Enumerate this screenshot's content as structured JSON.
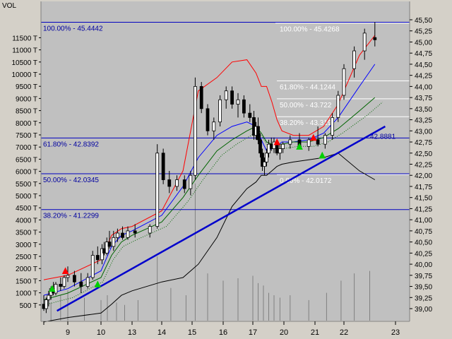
{
  "panel": {
    "volume_label": "VOL"
  },
  "chart_data": {
    "type": "candlestick",
    "x_ticks": [
      "9",
      "10",
      "13",
      "14",
      "15",
      "16",
      "17",
      "20",
      "21",
      "22",
      "23"
    ],
    "left_axis_ticks": [
      "500 T",
      "1000 T",
      "1500 T",
      "2000 T",
      "2500 T",
      "3000 T",
      "3500 T",
      "4000 T",
      "4500 T",
      "5000 T",
      "5500 T",
      "6000 T",
      "6500 T",
      "7000 T",
      "7500 T",
      "8000 T",
      "8500 T",
      "9000 T",
      "9500 T",
      "10000 T",
      "10500 T",
      "11000 T",
      "11500 T"
    ],
    "right_axis_ticks": [
      "39,00",
      "39,25",
      "39,50",
      "39,75",
      "40,00",
      "40,25",
      "40,50",
      "40,75",
      "41,00",
      "41,25",
      "41,50",
      "41,75",
      "42,00",
      "42,25",
      "42,50",
      "42,75",
      "43,00",
      "43,25",
      "43,50",
      "43,75",
      "44,00",
      "44,25",
      "44,50",
      "44,75",
      "45,00",
      "45,25",
      "45,50"
    ],
    "price_range": [
      38.9,
      45.55
    ],
    "fibonacci_long": [
      {
        "label": "100.00% - 45.4442",
        "price": 45.4442
      },
      {
        "label": "61.80% - 42.8392",
        "price": 42.8392
      },
      {
        "label": "50.00% - 42.0345",
        "price": 42.0345
      },
      {
        "label": "38.20% - 41.2299",
        "price": 41.2299
      }
    ],
    "fibonacci_short": [
      {
        "label": "100.00% - 45.4268",
        "price": 45.4268
      },
      {
        "label": "61.80% - 44.1244",
        "price": 44.1244
      },
      {
        "label": "50.00% - 43.722",
        "price": 43.722
      },
      {
        "label": "38.20% - 43.3197",
        "price": 43.3197
      },
      {
        "label": "0.00% - 42.0172",
        "price": 42.0172
      }
    ],
    "trendline_value_label": "42.8881",
    "trendline_value": 42.8881,
    "trendline": {
      "from": {
        "day": 8.55,
        "price": 38.95
      },
      "to": {
        "day": 22.8,
        "price": 43.1
      }
    },
    "candles": [
      {
        "d": 8.0,
        "o": 39.1,
        "h": 39.3,
        "l": 38.95,
        "c": 39.0
      },
      {
        "d": 8.1,
        "o": 39.0,
        "h": 39.25,
        "l": 38.9,
        "c": 39.2
      },
      {
        "d": 8.2,
        "o": 39.2,
        "h": 39.4,
        "l": 39.05,
        "c": 39.3
      },
      {
        "d": 8.3,
        "o": 39.3,
        "h": 39.5,
        "l": 39.2,
        "c": 39.45
      },
      {
        "d": 8.4,
        "o": 39.45,
        "h": 39.6,
        "l": 39.3,
        "c": 39.35
      },
      {
        "d": 8.5,
        "o": 39.35,
        "h": 39.6,
        "l": 39.3,
        "c": 39.55
      },
      {
        "d": 8.7,
        "o": 39.55,
        "h": 39.7,
        "l": 39.4,
        "c": 39.5
      },
      {
        "d": 8.85,
        "o": 39.5,
        "h": 39.75,
        "l": 39.45,
        "c": 39.7
      },
      {
        "d": 9.0,
        "o": 39.7,
        "h": 39.95,
        "l": 39.6,
        "c": 39.75
      },
      {
        "d": 9.2,
        "o": 39.75,
        "h": 39.85,
        "l": 39.5,
        "c": 39.6
      },
      {
        "d": 9.4,
        "o": 39.6,
        "h": 39.8,
        "l": 39.35,
        "c": 39.5
      },
      {
        "d": 9.6,
        "o": 39.5,
        "h": 39.8,
        "l": 39.45,
        "c": 39.7
      },
      {
        "d": 9.75,
        "o": 39.7,
        "h": 40.3,
        "l": 39.65,
        "c": 40.2
      },
      {
        "d": 9.9,
        "o": 40.2,
        "h": 40.4,
        "l": 40.0,
        "c": 40.1
      },
      {
        "d": 10.1,
        "o": 40.1,
        "h": 40.45,
        "l": 40.0,
        "c": 40.35
      },
      {
        "d": 10.3,
        "o": 40.35,
        "h": 40.5,
        "l": 40.2,
        "c": 40.25
      },
      {
        "d": 10.55,
        "o": 40.25,
        "h": 40.6,
        "l": 40.2,
        "c": 40.5
      },
      {
        "d": 10.8,
        "o": 40.5,
        "h": 40.75,
        "l": 40.35,
        "c": 40.4
      },
      {
        "d": 11.2,
        "o": 40.4,
        "h": 40.75,
        "l": 40.3,
        "c": 40.6
      },
      {
        "d": 11.6,
        "o": 40.6,
        "h": 40.8,
        "l": 40.5,
        "c": 40.7
      },
      {
        "d": 12.1,
        "o": 40.7,
        "h": 40.85,
        "l": 40.55,
        "c": 40.6
      },
      {
        "d": 12.6,
        "o": 40.6,
        "h": 40.85,
        "l": 40.55,
        "c": 40.75
      },
      {
        "d": 13.1,
        "o": 40.75,
        "h": 40.9,
        "l": 40.6,
        "c": 40.7
      },
      {
        "d": 13.6,
        "o": 40.7,
        "h": 40.9,
        "l": 40.6,
        "c": 40.85
      },
      {
        "d": 13.85,
        "o": 40.85,
        "h": 42.7,
        "l": 40.8,
        "c": 42.5
      },
      {
        "d": 14.05,
        "o": 42.5,
        "h": 42.6,
        "l": 41.8,
        "c": 41.9
      },
      {
        "d": 14.25,
        "o": 41.9,
        "h": 42.1,
        "l": 41.6,
        "c": 41.75
      },
      {
        "d": 14.5,
        "o": 41.75,
        "h": 42.0,
        "l": 41.65,
        "c": 41.9
      },
      {
        "d": 14.75,
        "o": 41.9,
        "h": 42.0,
        "l": 41.6,
        "c": 41.7
      },
      {
        "d": 14.95,
        "o": 41.7,
        "h": 42.1,
        "l": 41.55,
        "c": 42.0
      },
      {
        "d": 15.1,
        "o": 42.0,
        "h": 44.2,
        "l": 41.9,
        "c": 44.0
      },
      {
        "d": 15.3,
        "o": 44.0,
        "h": 44.1,
        "l": 43.4,
        "c": 43.5
      },
      {
        "d": 15.5,
        "o": 43.5,
        "h": 43.6,
        "l": 42.9,
        "c": 43.0
      },
      {
        "d": 15.7,
        "o": 43.0,
        "h": 43.3,
        "l": 42.8,
        "c": 43.2
      },
      {
        "d": 15.9,
        "o": 43.2,
        "h": 43.8,
        "l": 43.1,
        "c": 43.7
      },
      {
        "d": 16.1,
        "o": 43.7,
        "h": 44.0,
        "l": 43.5,
        "c": 43.9
      },
      {
        "d": 16.3,
        "o": 43.9,
        "h": 44.0,
        "l": 43.5,
        "c": 43.6
      },
      {
        "d": 16.5,
        "o": 43.6,
        "h": 43.85,
        "l": 43.3,
        "c": 43.7
      },
      {
        "d": 16.7,
        "o": 43.7,
        "h": 43.8,
        "l": 43.3,
        "c": 43.4
      },
      {
        "d": 16.9,
        "o": 43.4,
        "h": 43.6,
        "l": 43.2,
        "c": 43.3
      },
      {
        "d": 17.1,
        "o": 43.3,
        "h": 43.45,
        "l": 42.8,
        "c": 42.9
      },
      {
        "d": 17.3,
        "o": 42.9,
        "h": 43.2,
        "l": 42.8,
        "c": 43.1
      },
      {
        "d": 17.5,
        "o": 43.1,
        "h": 43.3,
        "l": 42.7,
        "c": 42.8
      },
      {
        "d": 17.7,
        "o": 42.8,
        "h": 42.95,
        "l": 42.4,
        "c": 42.5
      },
      {
        "d": 17.9,
        "o": 42.5,
        "h": 42.6,
        "l": 42.1,
        "c": 42.2
      },
      {
        "d": 18.1,
        "o": 42.2,
        "h": 42.4,
        "l": 42.0,
        "c": 42.3
      },
      {
        "d": 18.3,
        "o": 42.3,
        "h": 42.6,
        "l": 42.2,
        "c": 42.5
      },
      {
        "d": 18.5,
        "o": 42.5,
        "h": 42.8,
        "l": 42.4,
        "c": 42.7
      },
      {
        "d": 18.75,
        "o": 42.7,
        "h": 42.85,
        "l": 42.55,
        "c": 42.6
      },
      {
        "d": 19.0,
        "o": 42.6,
        "h": 42.85,
        "l": 42.5,
        "c": 42.75
      },
      {
        "d": 19.3,
        "o": 42.75,
        "h": 42.8,
        "l": 42.45,
        "c": 42.5
      },
      {
        "d": 19.6,
        "o": 42.5,
        "h": 42.7,
        "l": 42.35,
        "c": 42.6
      },
      {
        "d": 19.9,
        "o": 42.6,
        "h": 42.75,
        "l": 42.5,
        "c": 42.7
      },
      {
        "d": 20.2,
        "o": 42.7,
        "h": 42.9,
        "l": 42.6,
        "c": 42.8
      },
      {
        "d": 20.5,
        "o": 42.8,
        "h": 42.95,
        "l": 42.6,
        "c": 42.65
      },
      {
        "d": 20.8,
        "o": 42.65,
        "h": 42.85,
        "l": 42.55,
        "c": 42.8
      },
      {
        "d": 21.1,
        "o": 42.8,
        "h": 43.1,
        "l": 42.65,
        "c": 42.7
      },
      {
        "d": 21.35,
        "o": 42.7,
        "h": 42.95,
        "l": 42.6,
        "c": 42.9
      },
      {
        "d": 21.6,
        "o": 42.9,
        "h": 43.4,
        "l": 42.8,
        "c": 43.3
      },
      {
        "d": 21.8,
        "o": 43.3,
        "h": 43.9,
        "l": 43.2,
        "c": 43.8
      },
      {
        "d": 22.0,
        "o": 43.8,
        "h": 44.5,
        "l": 43.7,
        "c": 44.4
      },
      {
        "d": 22.2,
        "o": 44.4,
        "h": 44.9,
        "l": 44.2,
        "c": 44.8
      },
      {
        "d": 22.4,
        "o": 44.8,
        "h": 45.3,
        "l": 44.6,
        "c": 45.2
      },
      {
        "d": 22.6,
        "o": 45.1,
        "h": 45.45,
        "l": 44.9,
        "c": 45.05
      }
    ],
    "volume": [
      {
        "d": 8.3,
        "v": 600
      },
      {
        "d": 8.7,
        "v": 900
      },
      {
        "d": 9.0,
        "v": 1100
      },
      {
        "d": 9.5,
        "v": 800
      },
      {
        "d": 10.0,
        "v": 700
      },
      {
        "d": 10.6,
        "v": 900
      },
      {
        "d": 11.5,
        "v": 600
      },
      {
        "d": 12.3,
        "v": 500
      },
      {
        "d": 13.2,
        "v": 700
      },
      {
        "d": 13.85,
        "v": 2500
      },
      {
        "d": 14.3,
        "v": 1200
      },
      {
        "d": 14.8,
        "v": 900
      },
      {
        "d": 15.1,
        "v": 5500
      },
      {
        "d": 15.5,
        "v": 1800
      },
      {
        "d": 16.0,
        "v": 1500
      },
      {
        "d": 16.5,
        "v": 1600
      },
      {
        "d": 17.0,
        "v": 1700
      },
      {
        "d": 17.5,
        "v": 1400
      },
      {
        "d": 18.0,
        "v": 1300
      },
      {
        "d": 18.5,
        "v": 1000
      },
      {
        "d": 19.0,
        "v": 900
      },
      {
        "d": 19.6,
        "v": 800
      },
      {
        "d": 20.2,
        "v": 900
      },
      {
        "d": 20.8,
        "v": 700
      },
      {
        "d": 21.4,
        "v": 1000
      },
      {
        "d": 21.9,
        "v": 1500
      },
      {
        "d": 22.2,
        "v": 1800
      },
      {
        "d": 22.5,
        "v": 1900
      }
    ],
    "series": [
      {
        "name": "",
        "color": "#ff0000",
        "points": [
          [
            8.0,
            39.65
          ],
          [
            9.0,
            39.75
          ],
          [
            10.0,
            40.1
          ],
          [
            11.0,
            40.65
          ],
          [
            12.0,
            40.8
          ],
          [
            13.0,
            40.85
          ],
          [
            14.0,
            41.2
          ],
          [
            14.7,
            42.1
          ],
          [
            15.2,
            43.9
          ],
          [
            15.8,
            44.2
          ],
          [
            16.3,
            44.55
          ],
          [
            16.8,
            44.6
          ],
          [
            17.3,
            44.3
          ],
          [
            17.8,
            44.0
          ],
          [
            18.3,
            44.0
          ],
          [
            18.8,
            43.65
          ],
          [
            19.3,
            43.25
          ],
          [
            19.8,
            43.0
          ],
          [
            20.3,
            42.9
          ],
          [
            20.8,
            42.9
          ],
          [
            21.3,
            43.1
          ],
          [
            21.8,
            43.6
          ],
          [
            22.3,
            44.7
          ],
          [
            22.6,
            45.15
          ]
        ]
      },
      {
        "name": "",
        "color": "#0000ff",
        "points": [
          [
            8.0,
            39.3
          ],
          [
            9.0,
            39.45
          ],
          [
            10.0,
            39.85
          ],
          [
            11.0,
            40.4
          ],
          [
            12.0,
            40.65
          ],
          [
            13.0,
            40.75
          ],
          [
            14.0,
            41.1
          ],
          [
            14.7,
            41.75
          ],
          [
            15.2,
            42.4
          ],
          [
            15.8,
            42.9
          ],
          [
            16.3,
            43.1
          ],
          [
            16.8,
            43.2
          ],
          [
            17.3,
            43.1
          ],
          [
            17.8,
            42.8
          ],
          [
            18.3,
            42.55
          ],
          [
            18.8,
            42.6
          ],
          [
            19.3,
            42.65
          ],
          [
            19.8,
            42.75
          ],
          [
            20.3,
            42.75
          ],
          [
            20.8,
            42.8
          ],
          [
            21.3,
            42.95
          ],
          [
            21.8,
            43.3
          ],
          [
            22.3,
            44.0
          ],
          [
            22.6,
            44.5
          ]
        ]
      },
      {
        "name": "",
        "color": "#006400",
        "points": [
          [
            8.0,
            39.2
          ],
          [
            9.0,
            39.35
          ],
          [
            10.0,
            39.7
          ],
          [
            11.0,
            40.2
          ],
          [
            12.0,
            40.5
          ],
          [
            13.0,
            40.65
          ],
          [
            14.0,
            40.95
          ],
          [
            14.7,
            41.5
          ],
          [
            15.2,
            42.0
          ],
          [
            15.8,
            42.55
          ],
          [
            16.3,
            42.8
          ],
          [
            16.8,
            43.0
          ],
          [
            17.3,
            43.1
          ],
          [
            17.8,
            42.95
          ],
          [
            18.3,
            42.75
          ],
          [
            18.8,
            42.7
          ],
          [
            19.3,
            42.7
          ],
          [
            19.8,
            42.7
          ],
          [
            20.3,
            42.75
          ],
          [
            20.8,
            42.75
          ],
          [
            21.3,
            42.85
          ],
          [
            21.8,
            43.05
          ],
          [
            22.3,
            43.45
          ],
          [
            22.6,
            43.75
          ]
        ]
      },
      {
        "name": "",
        "color": "#000000",
        "points": [
          [
            8.0,
            38.7
          ],
          [
            9.0,
            38.8
          ],
          [
            10.0,
            38.9
          ],
          [
            11.0,
            39.1
          ],
          [
            12.0,
            39.3
          ],
          [
            13.0,
            39.4
          ],
          [
            14.0,
            39.6
          ],
          [
            14.7,
            39.7
          ],
          [
            15.2,
            40.0
          ],
          [
            15.8,
            40.6
          ],
          [
            16.3,
            41.3
          ],
          [
            16.8,
            41.7
          ],
          [
            17.3,
            41.85
          ],
          [
            17.8,
            42.0
          ],
          [
            18.3,
            42.0
          ],
          [
            18.8,
            42.1
          ],
          [
            19.3,
            42.2
          ],
          [
            19.8,
            42.25
          ],
          [
            20.3,
            42.3
          ],
          [
            20.8,
            42.35
          ],
          [
            21.3,
            42.4
          ],
          [
            21.8,
            42.5
          ],
          [
            22.3,
            42.1
          ],
          [
            22.6,
            41.9
          ]
        ]
      }
    ],
    "markers": [
      {
        "d": 8.9,
        "p": 39.85,
        "type": "up-red"
      },
      {
        "d": 9.9,
        "p": 39.55,
        "type": "up-green"
      },
      {
        "d": 8.35,
        "p": 39.45,
        "type": "up-green"
      },
      {
        "d": 19.3,
        "p": 42.75,
        "type": "up-red"
      },
      {
        "d": 20.95,
        "p": 42.85,
        "type": "up-red"
      },
      {
        "d": 20.5,
        "p": 42.65,
        "type": "up-green"
      },
      {
        "d": 21.25,
        "p": 42.45,
        "type": "up-green"
      }
    ]
  }
}
